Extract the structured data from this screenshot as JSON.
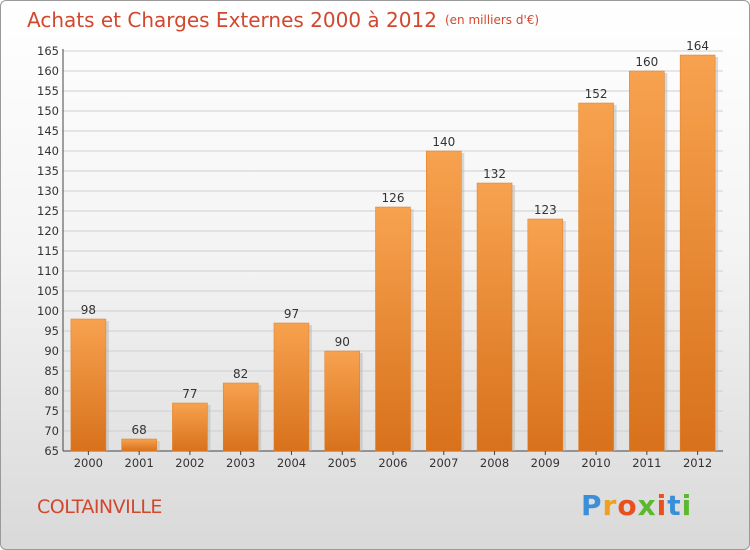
{
  "chart_data": {
    "type": "bar",
    "title": "Achats et Charges Externes 2000 à 2012",
    "unit_label": "(en milliers d'€)",
    "categories": [
      "2000",
      "2001",
      "2002",
      "2003",
      "2004",
      "2005",
      "2006",
      "2007",
      "2008",
      "2009",
      "2010",
      "2011",
      "2012"
    ],
    "values": [
      98,
      68,
      77,
      82,
      97,
      90,
      126,
      140,
      132,
      123,
      152,
      160,
      164
    ],
    "ylim": [
      65,
      165
    ],
    "yticks": [
      65,
      70,
      75,
      80,
      85,
      90,
      95,
      100,
      105,
      110,
      115,
      120,
      125,
      130,
      135,
      140,
      145,
      150,
      155,
      160,
      165
    ],
    "grid": true,
    "bar_color": "#f08a2c"
  },
  "footer": {
    "place": "COLTAINVILLE",
    "logo": [
      "P",
      "r",
      "o",
      "x",
      "i",
      "t",
      "i"
    ],
    "logo_colors": [
      "#3a8fd8",
      "#f0a020",
      "#e8501e",
      "#5cb82e",
      "#e8501e",
      "#3a8fd8",
      "#5cb82e"
    ]
  }
}
